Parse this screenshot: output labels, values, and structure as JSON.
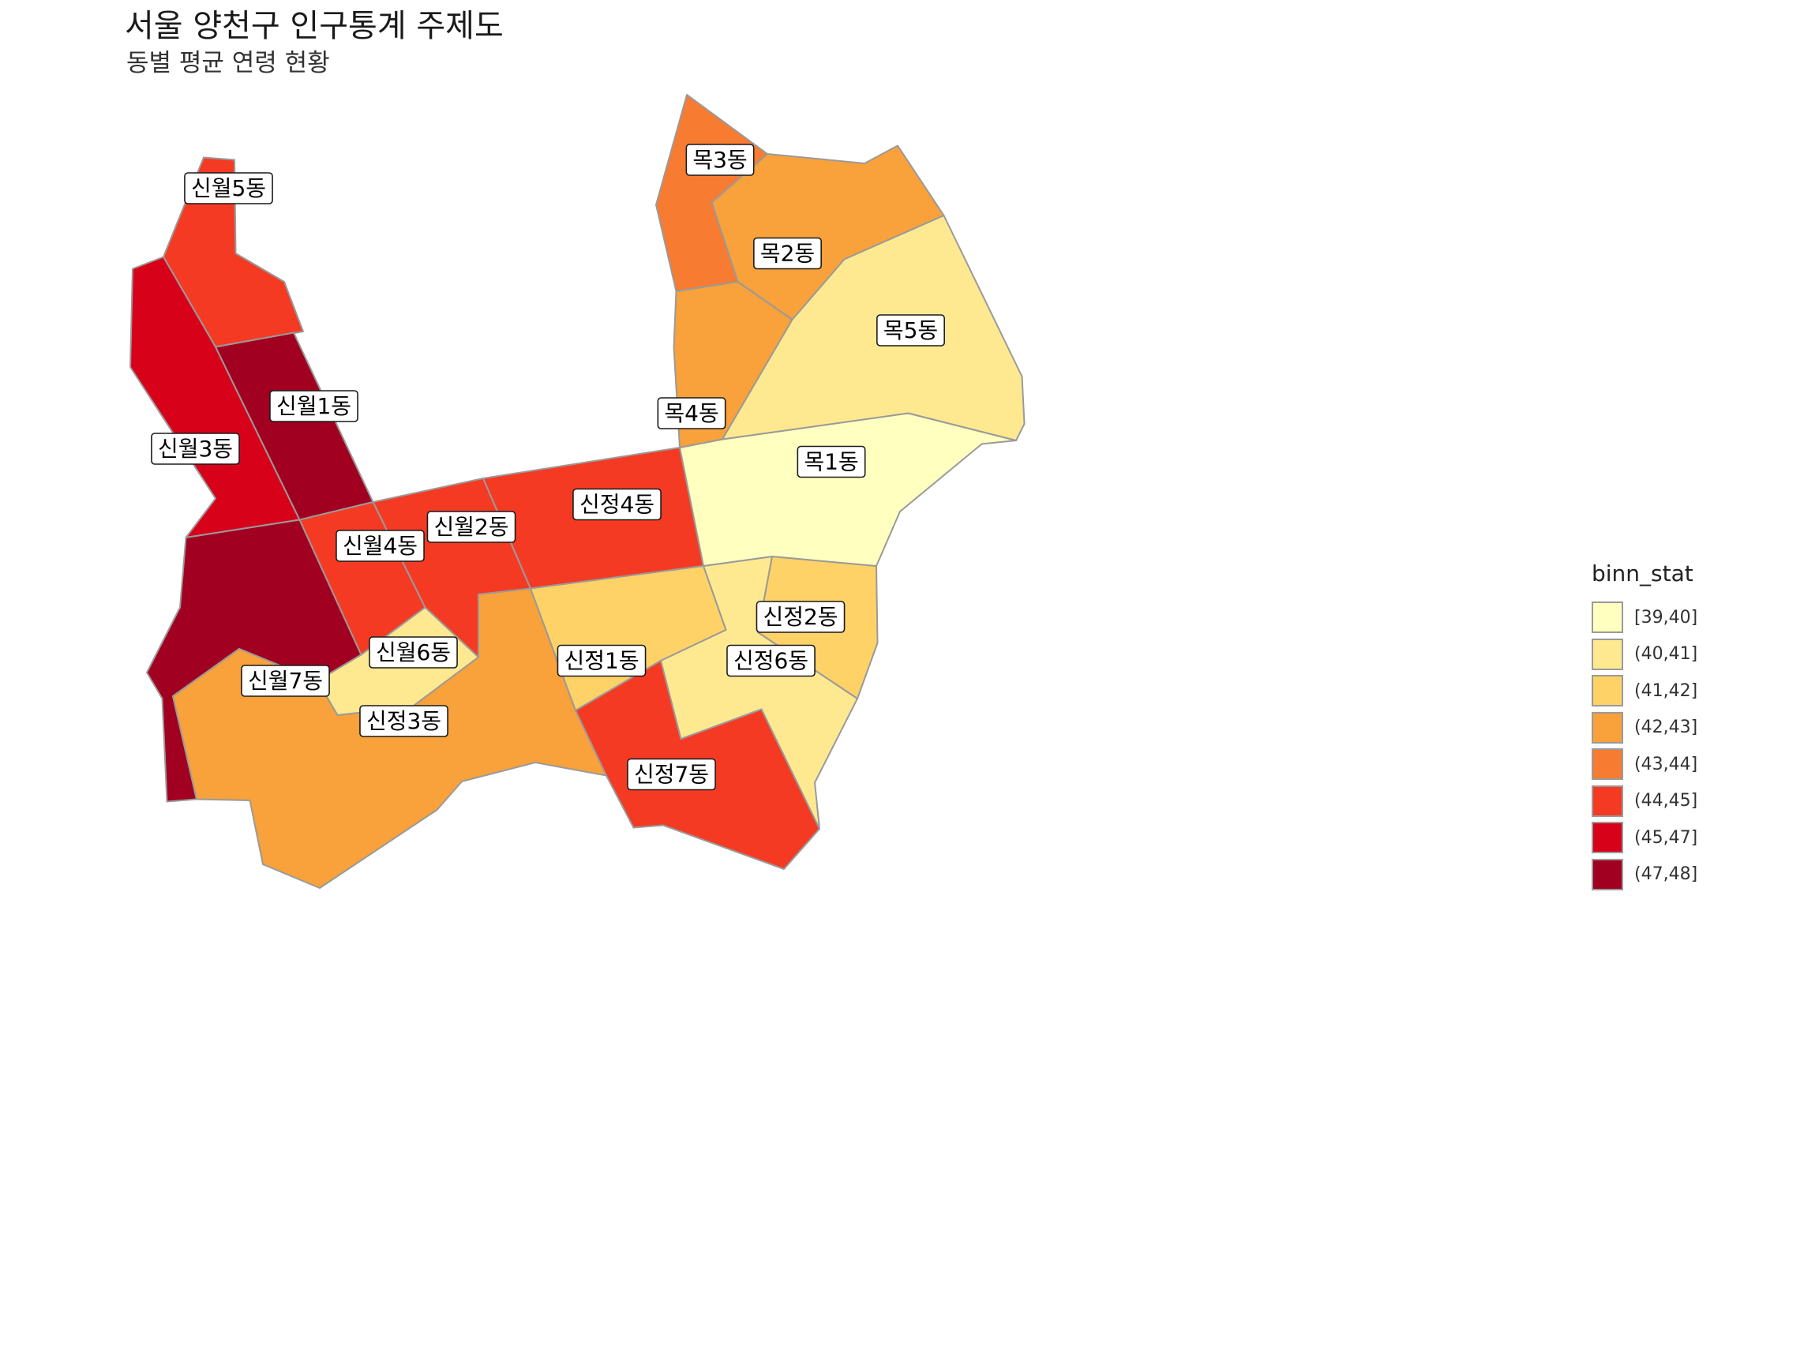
{
  "title": "서울 양천구 인구통계 주제도",
  "subtitle": "동별 평균 연령 현황",
  "legend": {
    "title": "binn_stat",
    "items": [
      {
        "label": "[39,40]",
        "color": "#FFFFBF"
      },
      {
        "label": "(40,41]",
        "color": "#FEE991"
      },
      {
        "label": "(41,42]",
        "color": "#FED266"
      },
      {
        "label": "(42,43]",
        "color": "#F9A13A"
      },
      {
        "label": "(43,44]",
        "color": "#F77B31"
      },
      {
        "label": "(44,45]",
        "color": "#F53A23"
      },
      {
        "label": "(45,47]",
        "color": "#D7021A"
      },
      {
        "label": "(47,48]",
        "color": "#A10020"
      }
    ]
  },
  "regions": [
    {
      "name": "신월5동",
      "bin": "(44,45]"
    },
    {
      "name": "신월3동",
      "bin": "(45,47]"
    },
    {
      "name": "신월1동",
      "bin": "(47,48]"
    },
    {
      "name": "신월7동",
      "bin": "(47,48]"
    },
    {
      "name": "신월4동",
      "bin": "(44,45]"
    },
    {
      "name": "신월2동",
      "bin": "(44,45]"
    },
    {
      "name": "신월6동",
      "bin": "(40,41]"
    },
    {
      "name": "신정3동",
      "bin": "(42,43]"
    },
    {
      "name": "신정4동",
      "bin": "(44,45]"
    },
    {
      "name": "신정1동",
      "bin": "(41,42]"
    },
    {
      "name": "신정7동",
      "bin": "(44,45]"
    },
    {
      "name": "신정6동",
      "bin": "(40,41]"
    },
    {
      "name": "신정2동",
      "bin": "(41,42]"
    },
    {
      "name": "목1동",
      "bin": "[39,40]"
    },
    {
      "name": "목2동",
      "bin": "(42,43]"
    },
    {
      "name": "목3동",
      "bin": "(43,44]"
    },
    {
      "name": "목4동",
      "bin": "(42,43]"
    },
    {
      "name": "목5동",
      "bin": "(40,41]"
    }
  ]
}
